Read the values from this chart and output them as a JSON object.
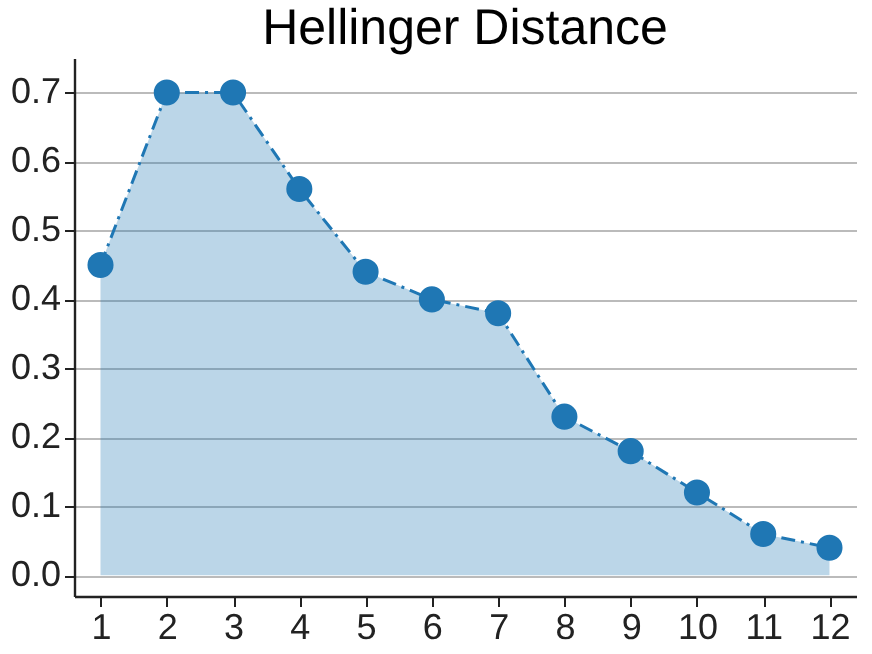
{
  "chart_data": {
    "type": "area",
    "title": "Hellinger Distance",
    "x": [
      1,
      2,
      3,
      4,
      5,
      6,
      7,
      8,
      9,
      10,
      11,
      12
    ],
    "series": [
      {
        "color": "#1f77b4",
        "values": [
          0.45,
          0.7,
          0.7,
          0.56,
          0.44,
          0.4,
          0.38,
          0.23,
          0.18,
          0.12,
          0.06,
          0.04
        ]
      }
    ],
    "xlim": [
      0.6,
      12.4
    ],
    "xticks": [
      1,
      2,
      3,
      4,
      5,
      6,
      7,
      8,
      9,
      10,
      11,
      12
    ],
    "ylim": [
      -0.03,
      0.75
    ],
    "yticks": [
      {
        "value": 0,
        "label": "0.0"
      },
      0.1,
      0.2,
      0.3,
      0.4,
      0.5,
      0.6,
      0.7
    ],
    "grid": "y",
    "marker": "circle",
    "line_style": "dashed"
  }
}
